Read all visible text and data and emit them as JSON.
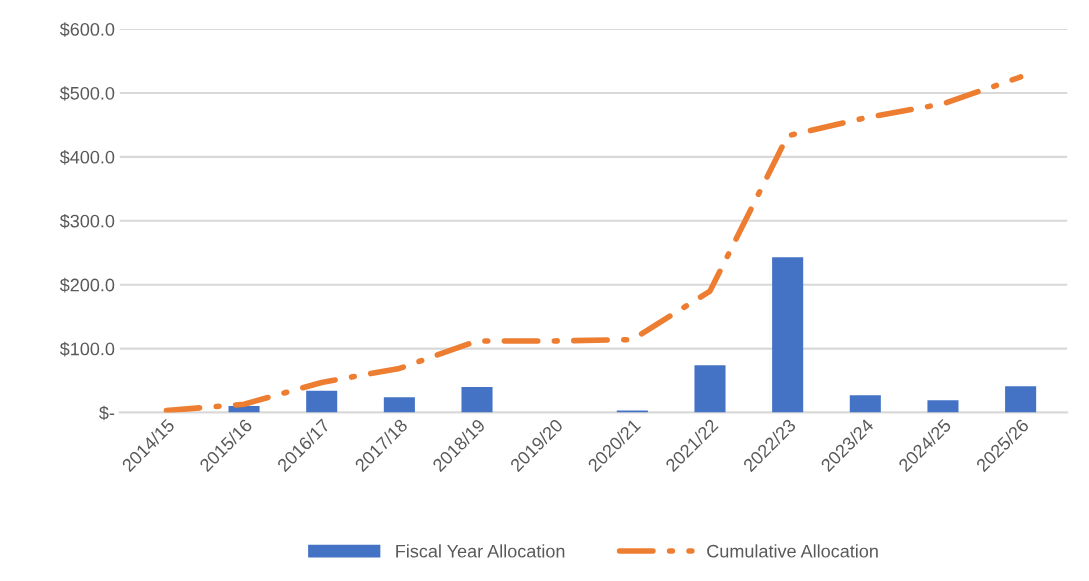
{
  "chart_data": {
    "type": "bar",
    "categories": [
      "2014/15",
      "2015/16",
      "2016/17",
      "2017/18",
      "2018/19",
      "2019/20",
      "2020/21",
      "2021/22",
      "2022/23",
      "2023/24",
      "2024/25",
      "2025/26"
    ],
    "series": [
      {
        "name": "Fiscal Year Allocation",
        "color": "#4472c4",
        "values": [
          0,
          10,
          34,
          24,
          40,
          0,
          3,
          74,
          243,
          27,
          19,
          41
        ]
      },
      {
        "name": "Cumulative Allocation",
        "type": "line",
        "color": "#ed7d31",
        "line_style": "dashdot",
        "values": [
          3,
          13,
          47,
          69,
          112,
          112,
          114,
          190,
          433,
          461,
          483,
          525
        ]
      }
    ],
    "ylim": [
      0,
      600
    ],
    "yticks": [
      {
        "value": 0,
        "label": "$-"
      },
      {
        "value": 100,
        "label": "$100.0"
      },
      {
        "value": 200,
        "label": "$200.0"
      },
      {
        "value": 300,
        "label": "$300.0"
      },
      {
        "value": 400,
        "label": "$400.0"
      },
      {
        "value": 500,
        "label": "$500.0"
      },
      {
        "value": 600,
        "label": "$600.0"
      }
    ],
    "grid": "y",
    "legend": "bottom"
  }
}
